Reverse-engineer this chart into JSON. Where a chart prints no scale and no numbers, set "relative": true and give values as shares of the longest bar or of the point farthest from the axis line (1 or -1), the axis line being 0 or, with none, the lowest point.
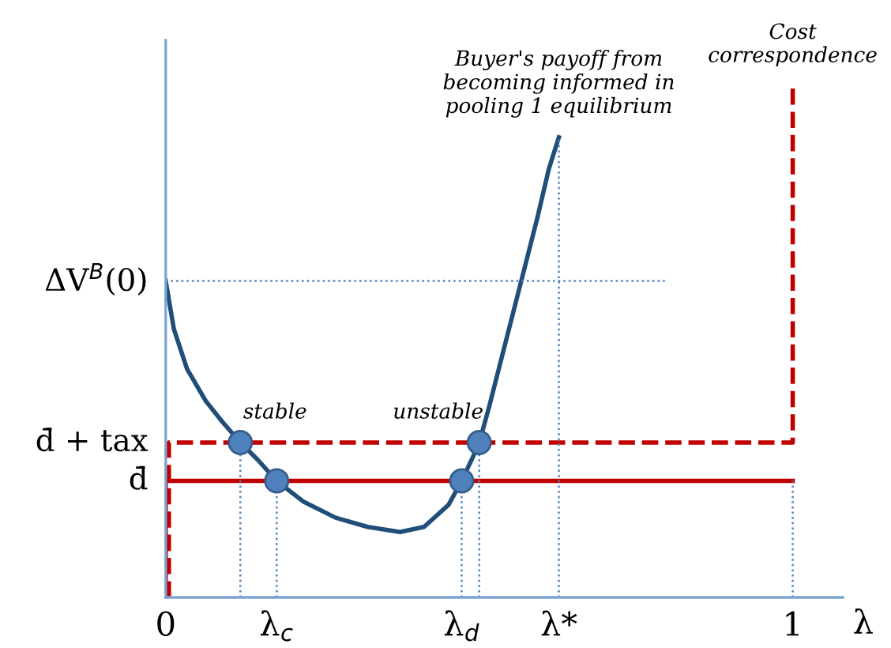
{
  "chart_data": {
    "type": "line",
    "relative": true,
    "xlabel": "λ",
    "xlim": [
      0,
      1.08
    ],
    "xticks": [
      0,
      {
        "value": 0.177,
        "label": "λ$_{c}$"
      },
      {
        "value": 0.472,
        "label": "λ$_{d}$"
      },
      {
        "value": 0.627,
        "label": "λ*"
      },
      1
    ],
    "grid": false,
    "legend": false,
    "series": [
      {
        "color": "#1f4e79",
        "line_style": "solid",
        "x": [
          0,
          0.013,
          0.034,
          0.064,
          0.09,
          0.119,
          0.147,
          0.177,
          0.219,
          0.271,
          0.322,
          0.374,
          0.412,
          0.451,
          0.472,
          0.49,
          0.5,
          0.515,
          0.541,
          0.567,
          0.593,
          0.611,
          0.627
        ],
        "values": [
          0.619,
          0.525,
          0.447,
          0.384,
          0.344,
          0.303,
          0.269,
          0.228,
          0.188,
          0.156,
          0.138,
          0.128,
          0.138,
          0.181,
          0.228,
          0.275,
          0.303,
          0.369,
          0.494,
          0.619,
          0.744,
          0.838,
          0.9
        ]
      },
      {
        "type": "line",
        "color": "#c00000",
        "line_style": "solid",
        "x": [
          0,
          0,
          1
        ],
        "values": [
          0,
          0.228,
          0.228
        ]
      },
      {
        "type": "line",
        "color": "#c00000",
        "line_style": "dashed",
        "x": [
          0.005,
          0.005,
          1,
          1
        ],
        "values": [
          0,
          0.303,
          0.303,
          1
        ]
      },
      {
        "type": "line",
        "color": "#4f81bd",
        "line_style": "dotted",
        "x": [
          0,
          0.799
        ],
        "values": [
          0.619,
          0.619
        ]
      },
      {
        "type": "line",
        "color": "#4f81bd",
        "line_style": "dotted",
        "x": [
          0.627,
          0.627
        ],
        "values": [
          0,
          0.9
        ]
      },
      {
        "type": "line",
        "color": "#4f81bd",
        "line_style": "dotted",
        "x": [
          0.119,
          0.119
        ],
        "values": [
          0,
          0.303
        ]
      },
      {
        "type": "line",
        "color": "#4f81bd",
        "line_style": "dotted",
        "x": [
          0.177,
          0.177
        ],
        "values": [
          0,
          0.228
        ]
      },
      {
        "type": "line",
        "color": "#4f81bd",
        "line_style": "dotted",
        "x": [
          0.472,
          0.472
        ],
        "values": [
          0,
          0.228
        ]
      },
      {
        "type": "line",
        "color": "#4f81bd",
        "line_style": "dotted",
        "x": [
          0.5,
          0.5
        ],
        "values": [
          0,
          0.303
        ]
      },
      {
        "type": "line",
        "color": "#4f81bd",
        "line_style": "dotted",
        "x": [
          1,
          1
        ],
        "values": [
          0,
          0.228
        ]
      },
      {
        "type": "scatter",
        "color": "#4f81bd",
        "marker": "circle",
        "x": [
          0.119,
          0.177,
          0.472,
          0.5
        ],
        "values": [
          0.303,
          0.228,
          0.228,
          0.303
        ]
      }
    ],
    "annotations": [
      {
        "text": "ΔV$^{B}$(0)",
        "x": 0,
        "y": 0.619
      },
      {
        "text": "d̄ + tax",
        "x": 0,
        "y": 0.303
      },
      {
        "text": "d̄",
        "x": 0,
        "y": 0.228
      },
      {
        "text": "stable",
        "x": 0.119,
        "y": 0.303
      },
      {
        "text": "unstable",
        "x": 0.5,
        "y": 0.303
      },
      {
        "text": "Buyer's payoff from\nbecoming informed in\npooling 1 equilibrium",
        "x": 0.627,
        "y": 0.9
      },
      {
        "text": "Cost\ncorrespondence",
        "x": 1,
        "y": 1
      }
    ]
  }
}
